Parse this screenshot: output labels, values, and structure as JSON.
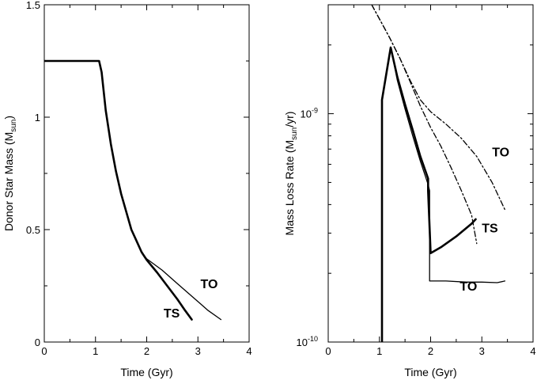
{
  "chart_data": [
    {
      "type": "line",
      "title": "",
      "xlabel": "Time (Gyr)",
      "ylabel_main": "Donor Star Mass (M",
      "ylabel_sub": "sun",
      "ylabel_end": ")",
      "xlim": [
        0,
        4
      ],
      "ylim": [
        0,
        1.5
      ],
      "x_ticks": [
        0,
        1,
        2,
        3,
        4
      ],
      "x_tick_labels": [
        "0",
        "1",
        "2",
        "3",
        "4"
      ],
      "y_ticks": [
        0,
        0.5,
        1,
        1.5
      ],
      "y_tick_labels": [
        "0",
        "0.5",
        "1",
        "1.5"
      ],
      "series": [
        {
          "name": "TS",
          "style": "solid-thick",
          "x": [
            0,
            1.07,
            1.12,
            1.2,
            1.3,
            1.4,
            1.5,
            1.6,
            1.7,
            1.8,
            1.9,
            2.0,
            2.2,
            2.4,
            2.6,
            2.75,
            2.88
          ],
          "y": [
            1.25,
            1.25,
            1.2,
            1.03,
            0.88,
            0.76,
            0.66,
            0.58,
            0.5,
            0.45,
            0.4,
            0.365,
            0.31,
            0.25,
            0.19,
            0.14,
            0.1
          ]
        },
        {
          "name": "TO",
          "style": "solid-thin",
          "x": [
            0,
            1.07,
            1.12,
            1.2,
            1.3,
            1.4,
            1.5,
            1.6,
            1.7,
            1.8,
            1.9,
            2.0,
            2.3,
            2.6,
            2.9,
            3.2,
            3.45
          ],
          "y": [
            1.25,
            1.25,
            1.2,
            1.03,
            0.88,
            0.76,
            0.66,
            0.58,
            0.5,
            0.45,
            0.4,
            0.37,
            0.32,
            0.26,
            0.2,
            0.14,
            0.1
          ]
        }
      ],
      "annotations": [
        {
          "text": "TO",
          "x": 3.05,
          "y": 0.24
        },
        {
          "text": "TS",
          "x": 2.33,
          "y": 0.11
        }
      ]
    },
    {
      "type": "line",
      "title": "",
      "xlabel": "Time (Gyr)",
      "ylabel_main": "Mass Loss Rate (M",
      "ylabel_sub": "sun",
      "ylabel_end": "/yr)",
      "yscale": "log",
      "xlim": [
        0,
        4
      ],
      "ylim": [
        1e-10,
        3e-09
      ],
      "x_ticks": [
        0,
        1,
        2,
        3,
        4
      ],
      "x_tick_labels": [
        "0",
        "1",
        "2",
        "3",
        "4"
      ],
      "y_ticks_major": [
        1e-10,
        1e-09
      ],
      "y_tick_labels": [
        {
          "base": "10",
          "exp": "-10"
        },
        {
          "base": "10",
          "exp": "-9"
        }
      ],
      "y_ticks_minor": [
        2e-10,
        3e-10,
        4e-10,
        5e-10,
        6e-10,
        7e-10,
        8e-10,
        9e-10,
        2e-09
      ],
      "series": [
        {
          "name": "TS solid",
          "style": "solid-thick",
          "x": [
            1.05,
            1.05,
            1.22,
            1.35,
            1.5,
            1.65,
            1.8,
            1.95,
            1.95,
            2.0,
            2.2,
            2.5,
            2.8,
            2.88
          ],
          "y": [
            9e-11,
            1.15e-09,
            1.95e-09,
            1.45e-09,
            1.1e-09,
            8.5e-10,
            6.5e-10,
            5.2e-10,
            4.6e-10,
            2.45e-10,
            2.6e-10,
            2.9e-10,
            3.3e-10,
            3.45e-10
          ]
        },
        {
          "name": "TO solid",
          "style": "solid-thin",
          "x": [
            1.22,
            1.35,
            1.5,
            1.65,
            1.8,
            1.95,
            1.98,
            1.98,
            2.3,
            2.7,
            3.0,
            3.3,
            3.45
          ],
          "y": [
            1.95e-09,
            1.4e-09,
            1.05e-09,
            8e-10,
            6.2e-10,
            4.9e-10,
            4.6e-10,
            1.85e-10,
            1.85e-10,
            1.83e-10,
            1.83e-10,
            1.82e-10,
            1.85e-10
          ]
        },
        {
          "name": "TS dash-dot",
          "style": "dashdot",
          "x": [
            0.85,
            1.0,
            1.2,
            1.4,
            1.6,
            1.8,
            2.0,
            2.2,
            2.4,
            2.6,
            2.8,
            2.9
          ],
          "y": [
            3e-09,
            2.6e-09,
            2.15e-09,
            1.75e-09,
            1.38e-09,
            1.08e-09,
            8.7e-10,
            7.2e-10,
            5.8e-10,
            4.6e-10,
            3.6e-10,
            2.7e-10
          ]
        },
        {
          "name": "TO dash-dot",
          "style": "dashdot",
          "x": [
            0.85,
            1.0,
            1.2,
            1.4,
            1.6,
            1.8,
            2.0,
            2.3,
            2.6,
            2.9,
            3.2,
            3.45
          ],
          "y": [
            3e-09,
            2.6e-09,
            2.15e-09,
            1.75e-09,
            1.4e-09,
            1.15e-09,
            1.02e-09,
            9e-10,
            7.8e-10,
            6.5e-10,
            5e-10,
            3.8e-10
          ]
        }
      ],
      "annotations": [
        {
          "text": "TO",
          "x": 3.2,
          "y": 6.5e-10
        },
        {
          "text": "TS",
          "x": 3.0,
          "y": 3.02e-10
        },
        {
          "text": "TO",
          "x": 2.57,
          "y": 1.68e-10
        }
      ]
    }
  ]
}
